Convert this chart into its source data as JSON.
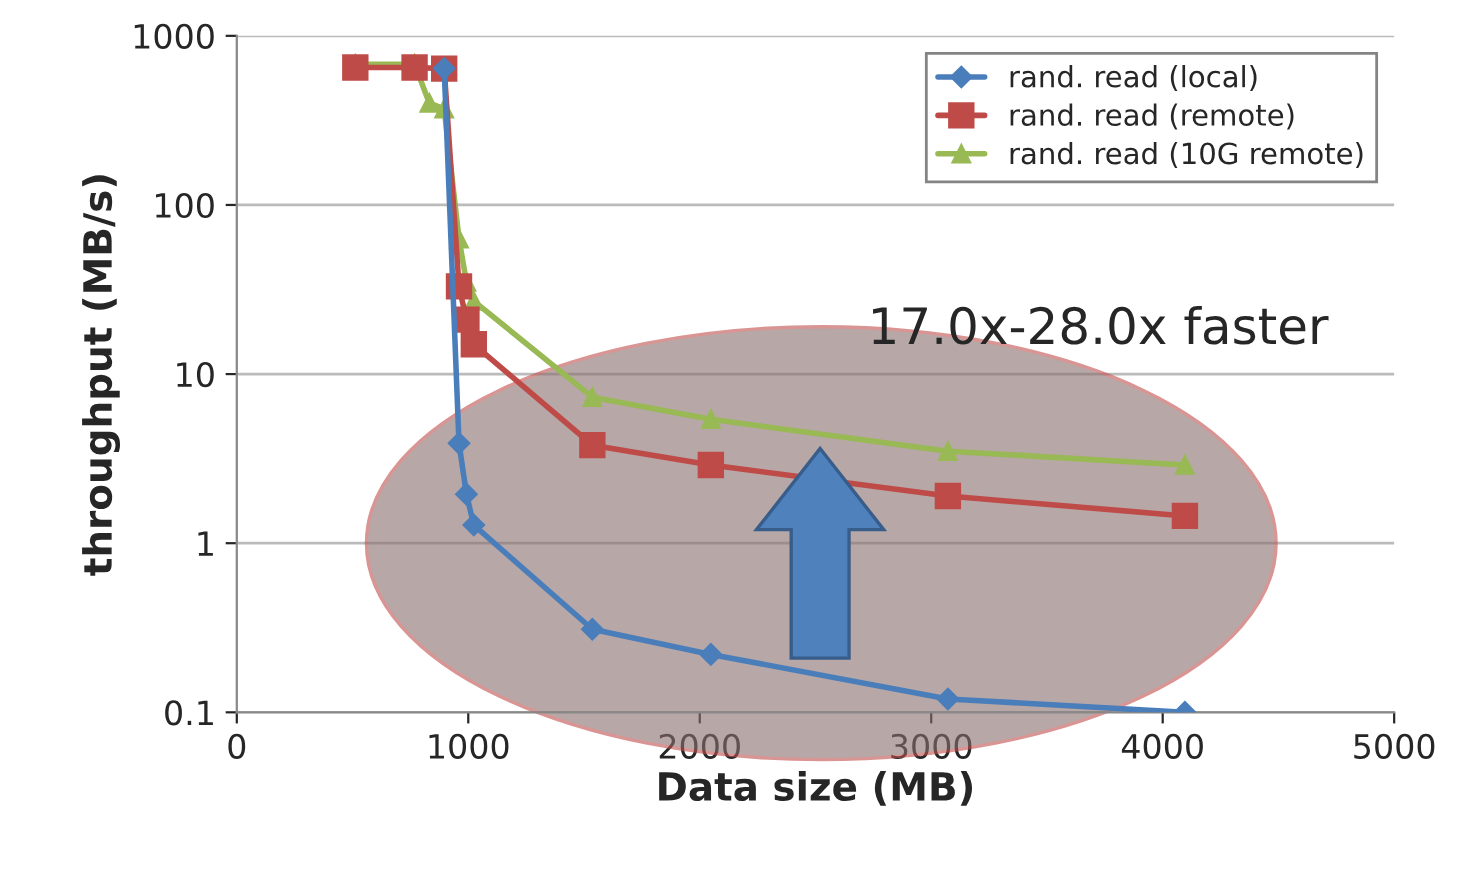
{
  "chart_data": {
    "type": "line",
    "xlabel": "Data size (MB)",
    "ylabel": "throughput (MB/s)",
    "x": [
      512,
      768,
      896,
      960,
      992,
      1024,
      1536,
      2048,
      3072,
      4096
    ],
    "series": [
      {
        "name": "rand. read (local)",
        "color": "#4a7ebb",
        "marker": "diamond",
        "values": [
          null,
          null,
          640,
          3.9,
          1.95,
          1.28,
          0.31,
          0.22,
          0.12,
          0.1
        ]
      },
      {
        "name": "rand. read (remote)",
        "color": "#be4b48",
        "marker": "square",
        "values": [
          650,
          650,
          640,
          33,
          21,
          15,
          3.8,
          2.9,
          1.9,
          1.45
        ]
      },
      {
        "name": "rand. read (10G remote)",
        "color": "#98b954",
        "marker": "triangle",
        "x": [
          512,
          768,
          832,
          896,
          960,
          992,
          1024,
          1536,
          2048,
          3072,
          4096
        ],
        "values": [
          680,
          680,
          400,
          370,
          63,
          35,
          27,
          7.3,
          5.4,
          3.5,
          2.9
        ]
      }
    ],
    "log": "y",
    "xlim": [
      0,
      5000
    ],
    "xticks": [
      0,
      1000,
      2000,
      3000,
      4000,
      5000
    ],
    "ylim": [
      0.1,
      1000
    ],
    "yticks": [
      0.1,
      1,
      10,
      100,
      1000
    ],
    "grid": "y",
    "legend": "top right",
    "annotations": [
      "17.0x-28.0x faster"
    ]
  }
}
